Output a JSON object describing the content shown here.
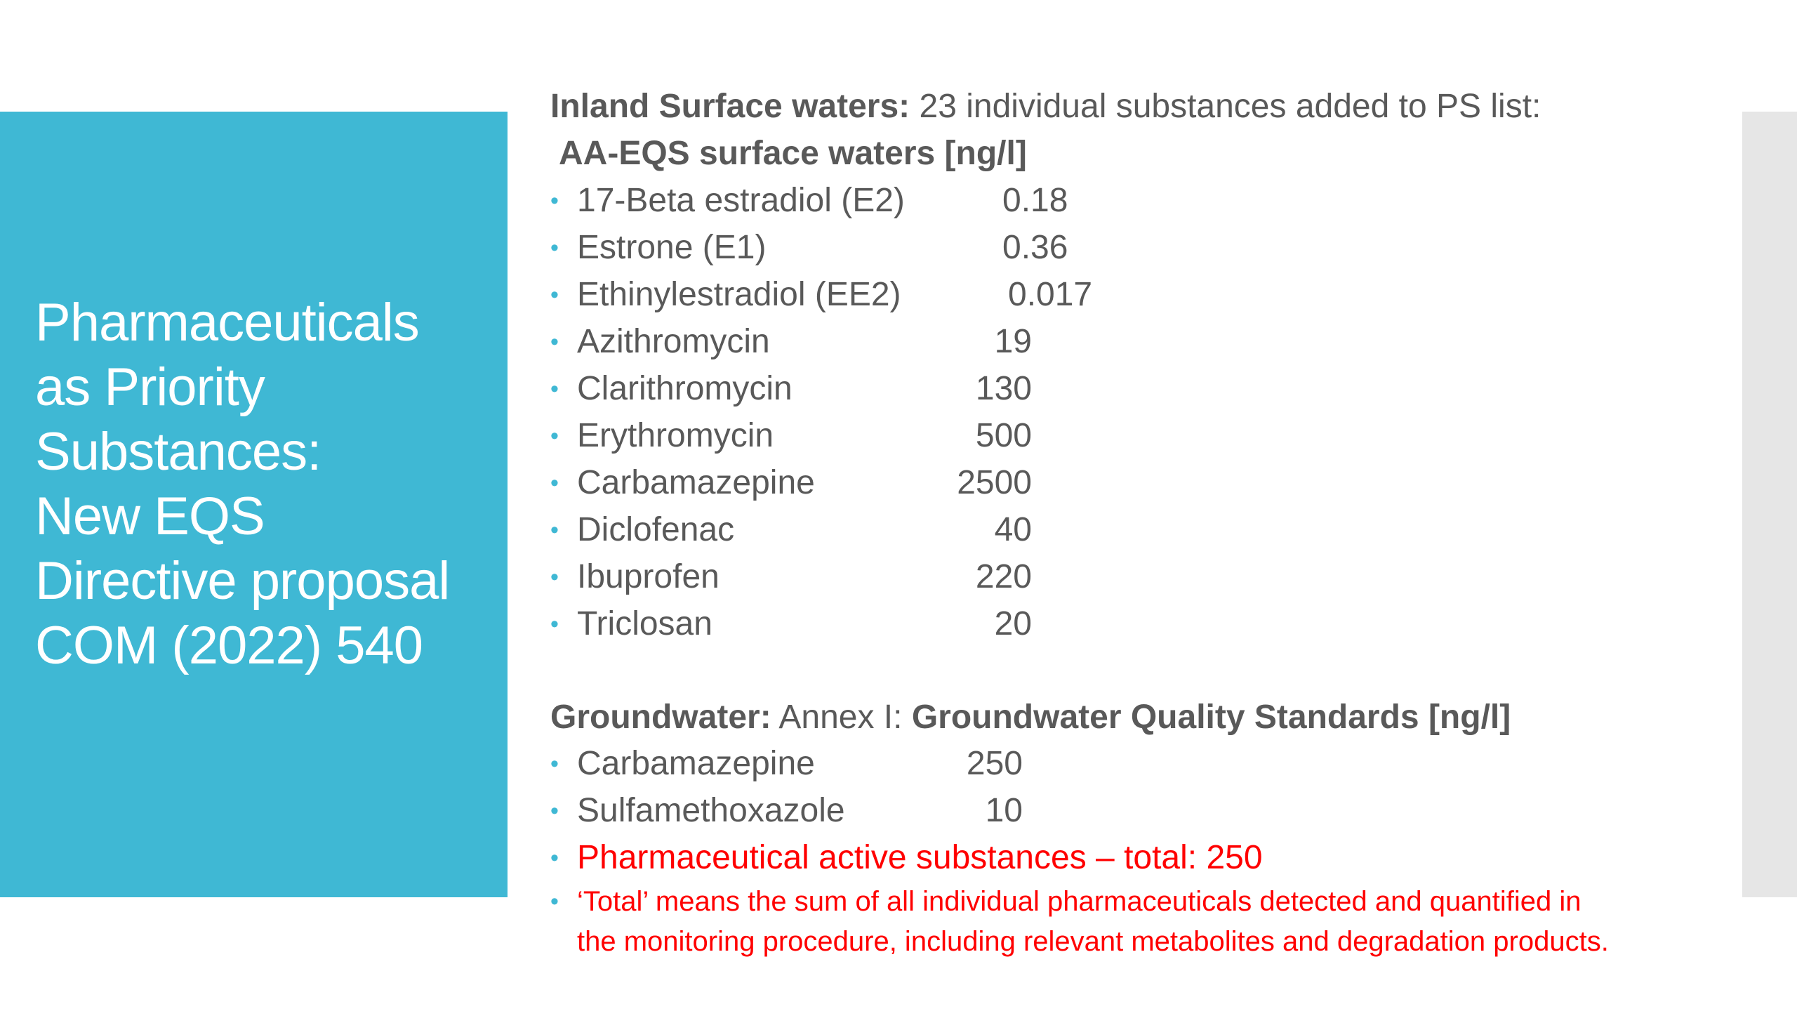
{
  "title_lines": [
    "Pharmaceuticals",
    "as Priority",
    "Substances:",
    "New EQS",
    "Directive proposal",
    "COM (2022) 540"
  ],
  "surface": {
    "heading_bold": "Inland Surface waters:",
    "heading_rest": " 23 individual substances added to PS list:",
    "subheading": "AA-EQS  surface waters [ng/l]",
    "items": [
      {
        "name": "17-Beta estradiol (E2)",
        "value": "0.18"
      },
      {
        "name": "Estrone (E1)",
        "value": "0.36"
      },
      {
        "name": "Ethinylestradiol (EE2)",
        "value": "0.017"
      },
      {
        "name": "Azithromycin",
        "value": "19"
      },
      {
        "name": "Clarithromycin",
        "value": "130"
      },
      {
        "name": "Erythromycin",
        "value": "500"
      },
      {
        "name": "Carbamazepine",
        "value": "2500"
      },
      {
        "name": "Diclofenac",
        "value": "40"
      },
      {
        "name": "Ibuprofen",
        "value": "220"
      },
      {
        "name": "Triclosan",
        "value": "20"
      }
    ]
  },
  "groundwater": {
    "heading_bold": "Groundwater:",
    "heading_mid": "  Annex I: ",
    "heading_bold2": "Groundwater Quality Standards [ng/l]",
    "items": [
      {
        "name": "Carbamazepine",
        "value": "250"
      },
      {
        "name": "Sulfamethoxazole",
        "value": "10"
      }
    ],
    "total": "Pharmaceutical active substances – total: 250",
    "note_line1": "‘Total’ means the sum of all individual pharmaceuticals detected and quantified in",
    "note_line2": "the monitoring procedure, including relevant metabolites and degradation products."
  },
  "colors": {
    "accent": "#3fb8d4",
    "text": "#595959",
    "highlight": "#ff0000",
    "side_panel": "#e6e6e6"
  }
}
